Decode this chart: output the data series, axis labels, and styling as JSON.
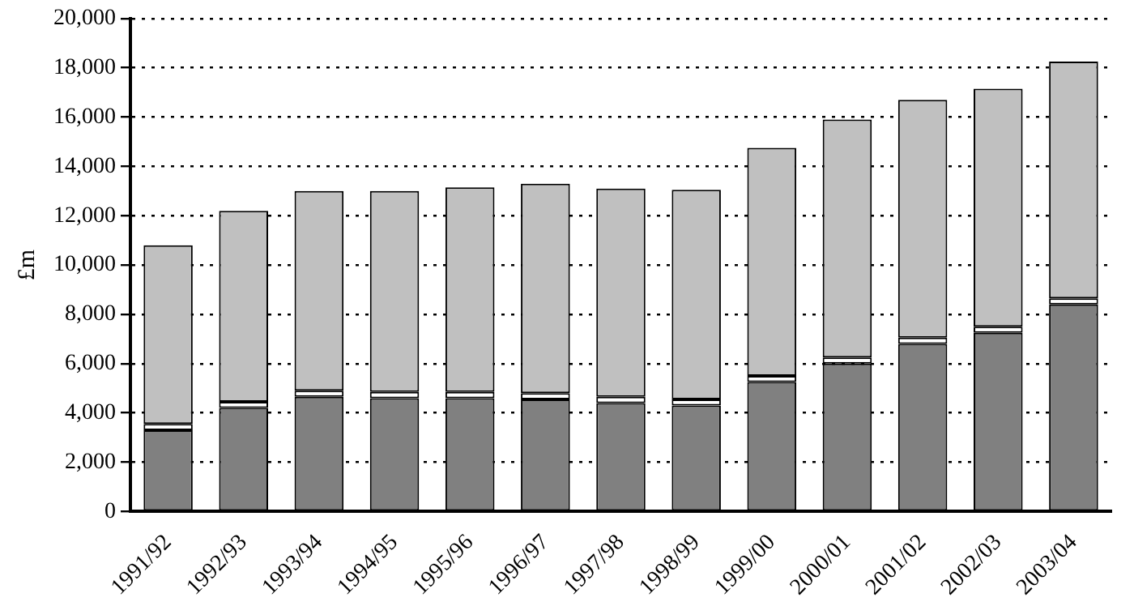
{
  "chart_data": {
    "type": "bar",
    "stacked": true,
    "ylabel": "£m",
    "categories": [
      "1991/92",
      "1992/93",
      "1993/94",
      "1994/95",
      "1995/96",
      "1996/97",
      "1997/98",
      "1998/99",
      "1999/00",
      "2000/01",
      "2001/02",
      "2002/03",
      "2003/04"
    ],
    "series": [
      {
        "color": "#808080",
        "values": [
          3300,
          4200,
          4650,
          4600,
          4600,
          4550,
          4400,
          4300,
          5250,
          6000,
          6800,
          7250,
          8400
        ]
      },
      {
        "color": "#ffffff",
        "values": [
          250,
          250,
          250,
          250,
          250,
          250,
          250,
          250,
          250,
          250,
          250,
          250,
          250
        ]
      },
      {
        "color": "#c0c0c0",
        "values": [
          7250,
          7750,
          8100,
          8150,
          8300,
          8500,
          8450,
          8500,
          9250,
          9650,
          9650,
          9650,
          9600
        ]
      }
    ],
    "ylim": [
      0,
      20000
    ],
    "yticks": [
      {
        "value": 0,
        "label": "0"
      },
      {
        "value": 2000,
        "label": "2,000"
      },
      {
        "value": 4000,
        "label": "4,000"
      },
      {
        "value": 6000,
        "label": "6,000"
      },
      {
        "value": 8000,
        "label": "8,000"
      },
      {
        "value": 10000,
        "label": "10,000"
      },
      {
        "value": 12000,
        "label": "12,000"
      },
      {
        "value": 14000,
        "label": "14,000"
      },
      {
        "value": 16000,
        "label": "16,000"
      },
      {
        "value": 18000,
        "label": "18,000"
      },
      {
        "value": 20000,
        "label": "20,000"
      }
    ],
    "grid": "y",
    "line_style": "dotted",
    "legend": false
  }
}
